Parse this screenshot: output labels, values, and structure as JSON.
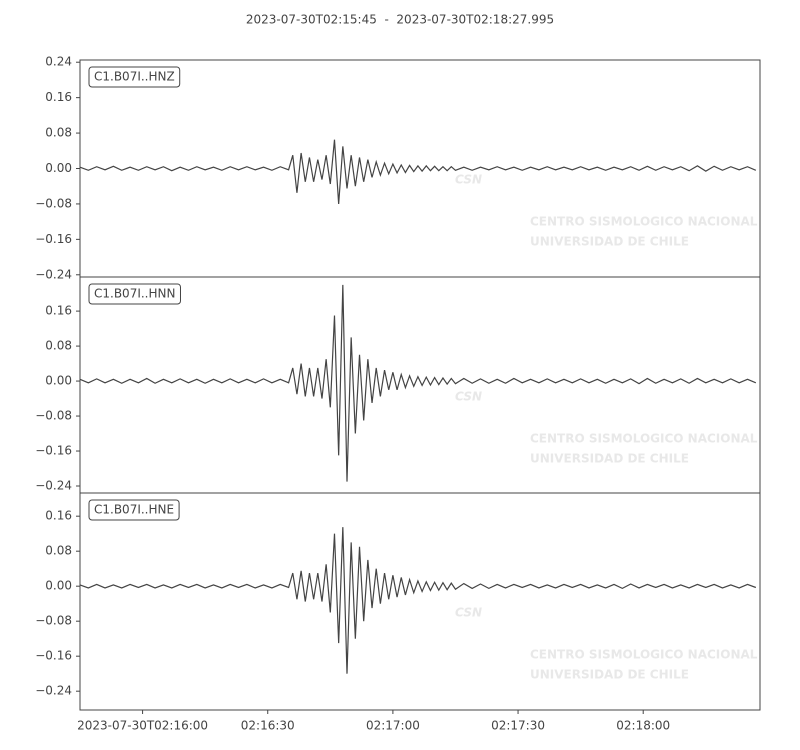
{
  "title": "2023-07-30T02:15:45  -  2023-07-30T02:18:27.995",
  "watermark": {
    "logo": "CSN",
    "line1": "CENTRO SISMOLOGICO NACIONAL",
    "line2": "UNIVERSIDAD DE CHILE"
  },
  "chart_data": [
    {
      "type": "line",
      "label": "C1.B07I..HNZ",
      "color": "#444444",
      "xlim": [
        0,
        162.995
      ],
      "ylim": [
        -0.245,
        0.245
      ],
      "yticks": [
        {
          "value": -0.24,
          "label": "−0.24"
        },
        {
          "value": -0.16,
          "label": "−0.16"
        },
        {
          "value": -0.08,
          "label": "−0.08"
        },
        {
          "value": 0,
          "label": "0.00"
        },
        {
          "value": 0.08,
          "label": "0.08"
        },
        {
          "value": 0.16,
          "label": "0.16"
        },
        {
          "value": 0.24,
          "label": "0.24"
        }
      ],
      "x": [
        0,
        2,
        4,
        6,
        8,
        10,
        12,
        14,
        16,
        18,
        20,
        22,
        24,
        26,
        28,
        30,
        32,
        34,
        36,
        38,
        40,
        42,
        44,
        46,
        48,
        50,
        51,
        52,
        53,
        54,
        55,
        56,
        57,
        58,
        59,
        60,
        61,
        62,
        63,
        64,
        65,
        66,
        67,
        68,
        69,
        70,
        71,
        72,
        73,
        74,
        75,
        76,
        77,
        78,
        79,
        80,
        81,
        82,
        83,
        84,
        85,
        86,
        87,
        88,
        89,
        90,
        92,
        94,
        96,
        98,
        100,
        102,
        104,
        106,
        108,
        110,
        112,
        114,
        116,
        118,
        120,
        122,
        124,
        126,
        128,
        130,
        132,
        134,
        136,
        138,
        140,
        142,
        144,
        146,
        148,
        150,
        152,
        154,
        156,
        158,
        160,
        162
      ],
      "values": [
        0.003,
        -0.004,
        0.004,
        -0.003,
        0.005,
        -0.004,
        0.003,
        -0.004,
        0.004,
        -0.003,
        0.004,
        -0.005,
        0.003,
        -0.004,
        0.004,
        -0.003,
        0.003,
        -0.004,
        0.004,
        -0.003,
        0.004,
        -0.003,
        0.003,
        -0.004,
        0.004,
        -0.003,
        0.03,
        -0.055,
        0.035,
        -0.03,
        0.025,
        -0.03,
        0.02,
        -0.025,
        0.03,
        -0.035,
        0.065,
        -0.08,
        0.05,
        -0.045,
        0.03,
        -0.04,
        0.025,
        -0.03,
        0.02,
        -0.02,
        0.015,
        -0.015,
        0.012,
        -0.012,
        0.01,
        -0.01,
        0.008,
        -0.009,
        0.007,
        -0.007,
        0.006,
        -0.006,
        0.006,
        -0.005,
        0.005,
        -0.005,
        0.004,
        -0.005,
        0.004,
        -0.004,
        0.003,
        -0.004,
        0.003,
        -0.003,
        0.004,
        -0.003,
        0.003,
        -0.004,
        0.003,
        -0.003,
        0.004,
        -0.003,
        0.003,
        -0.003,
        0.004,
        -0.003,
        0.003,
        -0.004,
        0.003,
        -0.003,
        0.004,
        -0.004,
        0.005,
        -0.004,
        0.004,
        -0.003,
        0.004,
        -0.005,
        0.006,
        -0.006,
        0.005,
        -0.004,
        0.004,
        -0.003,
        0.004,
        -0.004
      ]
    },
    {
      "type": "line",
      "label": "C1.B07I..HNN",
      "color": "#444444",
      "xlim": [
        0,
        162.995
      ],
      "ylim": [
        -0.256,
        0.238
      ],
      "yticks": [
        {
          "value": -0.24,
          "label": "−0.24"
        },
        {
          "value": -0.16,
          "label": "−0.16"
        },
        {
          "value": -0.08,
          "label": "−0.08"
        },
        {
          "value": 0,
          "label": "0.00"
        },
        {
          "value": 0.08,
          "label": "0.08"
        },
        {
          "value": 0.16,
          "label": "0.16"
        }
      ],
      "x": [
        0,
        2,
        4,
        6,
        8,
        10,
        12,
        14,
        16,
        18,
        20,
        22,
        24,
        26,
        28,
        30,
        32,
        34,
        36,
        38,
        40,
        42,
        44,
        46,
        48,
        50,
        51,
        52,
        53,
        54,
        55,
        56,
        57,
        58,
        59,
        60,
        61,
        62,
        63,
        64,
        65,
        66,
        67,
        68,
        69,
        70,
        71,
        72,
        73,
        74,
        75,
        76,
        77,
        78,
        79,
        80,
        81,
        82,
        83,
        84,
        85,
        86,
        87,
        88,
        89,
        90,
        92,
        94,
        96,
        98,
        100,
        102,
        104,
        106,
        108,
        110,
        112,
        114,
        116,
        118,
        120,
        122,
        124,
        126,
        128,
        130,
        132,
        134,
        136,
        138,
        140,
        142,
        144,
        146,
        148,
        150,
        152,
        154,
        156,
        158,
        160,
        162
      ],
      "values": [
        0.004,
        -0.004,
        0.005,
        -0.004,
        0.004,
        -0.005,
        0.004,
        -0.004,
        0.006,
        -0.005,
        0.004,
        -0.004,
        0.005,
        -0.004,
        0.004,
        -0.005,
        0.004,
        -0.004,
        0.005,
        -0.004,
        0.004,
        -0.004,
        0.005,
        -0.004,
        0.004,
        -0.004,
        0.03,
        -0.03,
        0.04,
        -0.035,
        0.03,
        -0.035,
        0.03,
        -0.04,
        0.05,
        -0.06,
        0.15,
        -0.17,
        0.22,
        -0.23,
        0.1,
        -0.12,
        0.06,
        -0.09,
        0.05,
        -0.05,
        0.03,
        -0.035,
        0.025,
        -0.02,
        0.02,
        -0.02,
        0.015,
        -0.015,
        0.012,
        -0.012,
        0.01,
        -0.01,
        0.009,
        -0.009,
        0.008,
        -0.008,
        0.007,
        -0.007,
        0.006,
        -0.006,
        0.006,
        -0.005,
        0.005,
        -0.005,
        0.004,
        -0.005,
        0.006,
        -0.004,
        0.004,
        -0.004,
        0.005,
        -0.004,
        0.004,
        -0.004,
        0.005,
        -0.004,
        0.004,
        -0.005,
        0.004,
        -0.004,
        0.005,
        -0.006,
        0.006,
        -0.005,
        0.004,
        -0.004,
        0.005,
        -0.005,
        0.006,
        -0.004,
        0.004,
        -0.004,
        0.005,
        -0.004,
        0.004,
        -0.004
      ]
    },
    {
      "type": "line",
      "label": "C1.B07I..HNE",
      "color": "#444444",
      "xlim": [
        0,
        162.995
      ],
      "ylim": [
        -0.283,
        0.213
      ],
      "yticks": [
        {
          "value": -0.24,
          "label": "−0.24"
        },
        {
          "value": -0.16,
          "label": "−0.16"
        },
        {
          "value": -0.08,
          "label": "−0.08"
        },
        {
          "value": 0,
          "label": "0.00"
        },
        {
          "value": 0.08,
          "label": "0.08"
        },
        {
          "value": 0.16,
          "label": "0.16"
        }
      ],
      "xticks": [
        {
          "value": 15,
          "label": "2023-07-30T02:16:00"
        },
        {
          "value": 45,
          "label": "02:16:30"
        },
        {
          "value": 75,
          "label": "02:17:00"
        },
        {
          "value": 105,
          "label": "02:17:30"
        },
        {
          "value": 135,
          "label": "02:18:00"
        }
      ],
      "x": [
        0,
        2,
        4,
        6,
        8,
        10,
        12,
        14,
        16,
        18,
        20,
        22,
        24,
        26,
        28,
        30,
        32,
        34,
        36,
        38,
        40,
        42,
        44,
        46,
        48,
        50,
        51,
        52,
        53,
        54,
        55,
        56,
        57,
        58,
        59,
        60,
        61,
        62,
        63,
        64,
        65,
        66,
        67,
        68,
        69,
        70,
        71,
        72,
        73,
        74,
        75,
        76,
        77,
        78,
        79,
        80,
        81,
        82,
        83,
        84,
        85,
        86,
        87,
        88,
        89,
        90,
        92,
        94,
        96,
        98,
        100,
        102,
        104,
        106,
        108,
        110,
        112,
        114,
        116,
        118,
        120,
        122,
        124,
        126,
        128,
        130,
        132,
        134,
        136,
        138,
        140,
        142,
        144,
        146,
        148,
        150,
        152,
        154,
        156,
        158,
        160,
        162
      ],
      "values": [
        0.003,
        -0.004,
        0.004,
        -0.004,
        0.003,
        -0.004,
        0.004,
        -0.003,
        0.004,
        -0.004,
        0.003,
        -0.004,
        0.004,
        -0.003,
        0.004,
        -0.004,
        0.003,
        -0.004,
        0.004,
        -0.003,
        0.004,
        -0.004,
        0.003,
        -0.004,
        0.004,
        -0.003,
        0.03,
        -0.03,
        0.035,
        -0.035,
        0.03,
        -0.03,
        0.03,
        -0.035,
        0.05,
        -0.06,
        0.12,
        -0.13,
        0.135,
        -0.2,
        0.1,
        -0.12,
        0.09,
        -0.08,
        0.06,
        -0.05,
        0.04,
        -0.04,
        0.03,
        -0.03,
        0.025,
        -0.025,
        0.02,
        -0.02,
        0.015,
        -0.015,
        0.012,
        -0.012,
        0.01,
        -0.01,
        0.009,
        -0.009,
        0.008,
        -0.008,
        0.007,
        -0.007,
        0.006,
        -0.005,
        0.005,
        -0.005,
        0.004,
        -0.004,
        0.004,
        -0.003,
        0.004,
        -0.004,
        0.003,
        -0.004,
        0.004,
        -0.003,
        0.004,
        -0.004,
        0.003,
        -0.004,
        0.004,
        -0.005,
        0.005,
        -0.004,
        0.004,
        -0.003,
        0.004,
        -0.004,
        0.003,
        -0.004,
        0.004,
        -0.003,
        0.004,
        -0.004,
        0.003,
        -0.004,
        0.004,
        -0.003
      ]
    }
  ]
}
